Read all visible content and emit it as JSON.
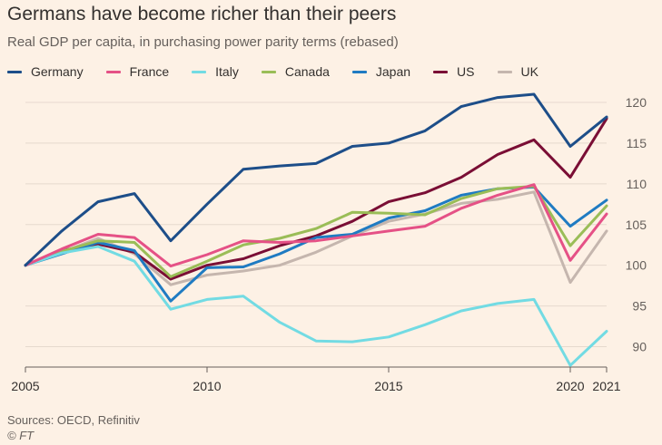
{
  "header": {
    "title": "Germans have become richer than their peers",
    "subtitle": "Real GDP per capita, in purchasing power parity terms (rebased)"
  },
  "footer": {
    "source": "Sources: OECD, Refinitiv",
    "credit": "© FT"
  },
  "chart_data": {
    "type": "line",
    "x": [
      2005,
      2006,
      2007,
      2008,
      2009,
      2010,
      2011,
      2012,
      2013,
      2014,
      2015,
      2016,
      2017,
      2018,
      2019,
      2020,
      2021
    ],
    "xticks": [
      2005,
      2010,
      2015,
      2020,
      2021
    ],
    "yticks": [
      90,
      95,
      100,
      105,
      110,
      115,
      120
    ],
    "xlim": [
      2005,
      2021
    ],
    "ylim": [
      87.5,
      122
    ],
    "grid": "horizontal",
    "legend_position": "top",
    "series": [
      {
        "name": "Germany",
        "color": "#1d4e89",
        "values": [
          100,
          104.2,
          107.8,
          108.8,
          103,
          107.5,
          111.8,
          112.2,
          112.5,
          114.6,
          115,
          116.5,
          119.5,
          120.6,
          121,
          114.6,
          118.2
        ]
      },
      {
        "name": "France",
        "color": "#e55186",
        "values": [
          100,
          102,
          103.8,
          103.4,
          99.9,
          101.3,
          103,
          102.8,
          103,
          103.6,
          104.2,
          104.8,
          107,
          108.6,
          109.9,
          100.6,
          106.3
        ]
      },
      {
        "name": "Italy",
        "color": "#72dbe3",
        "values": [
          100,
          101.5,
          102.3,
          100.5,
          94.6,
          95.8,
          96.2,
          93,
          90.7,
          90.6,
          91.2,
          92.7,
          94.4,
          95.3,
          95.8,
          87.7,
          91.9
        ]
      },
      {
        "name": "Canada",
        "color": "#9abd57",
        "values": [
          100,
          101.7,
          103,
          102.8,
          98.6,
          100.5,
          102.5,
          103.3,
          104.5,
          106.5,
          106.4,
          106.2,
          108.2,
          109.4,
          109.7,
          102.4,
          107.3
        ]
      },
      {
        "name": "Japan",
        "color": "#1f7bc2",
        "values": [
          100,
          101.4,
          102.8,
          101.8,
          95.6,
          99.7,
          99.8,
          101.4,
          103.4,
          103.8,
          105.8,
          106.7,
          108.6,
          109.4,
          109.6,
          104.8,
          108
        ]
      },
      {
        "name": "US",
        "color": "#7a0e35",
        "values": [
          100,
          101.8,
          102.6,
          101.6,
          98.3,
          100,
          100.8,
          102.4,
          103.6,
          105.4,
          107.8,
          108.9,
          110.8,
          113.6,
          115.4,
          110.8,
          118
        ]
      },
      {
        "name": "UK",
        "color": "#c5b6ae",
        "values": [
          100,
          101.6,
          103.3,
          101.4,
          97.6,
          98.8,
          99.3,
          100,
          101.6,
          103.6,
          105.4,
          106.3,
          107.6,
          108.1,
          109,
          97.9,
          104.2
        ]
      }
    ]
  }
}
